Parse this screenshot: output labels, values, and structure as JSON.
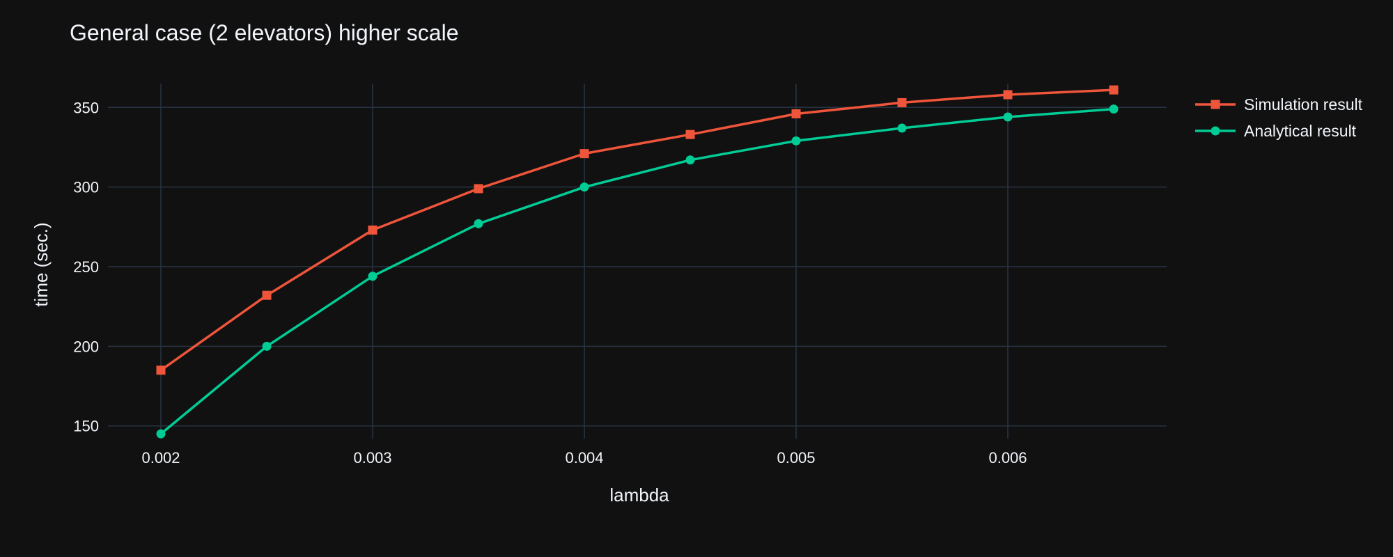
{
  "chart_data": {
    "type": "line",
    "title": "General case (2 elevators) higher scale",
    "xlabel": "lambda",
    "ylabel": "time (sec.)",
    "x": [
      0.002,
      0.0025,
      0.003,
      0.0035,
      0.004,
      0.0045,
      0.005,
      0.0055,
      0.006,
      0.0065
    ],
    "xlim": [
      0.00175,
      0.00675
    ],
    "ylim": [
      142,
      365
    ],
    "xticks": [
      0.002,
      0.003,
      0.004,
      0.005,
      0.006
    ],
    "xtick_labels": [
      "0.002",
      "0.003",
      "0.004",
      "0.005",
      "0.006"
    ],
    "yticks": [
      150,
      200,
      250,
      300,
      350
    ],
    "ytick_labels": [
      "150",
      "200",
      "250",
      "300",
      "350"
    ],
    "grid": true,
    "legend_position": "top-right",
    "series": [
      {
        "name": "Simulation result",
        "color": "#EF553B",
        "marker": "square",
        "values": [
          185,
          232,
          273,
          299,
          321,
          333,
          346,
          353,
          358,
          361
        ]
      },
      {
        "name": "Analytical result",
        "color": "#00CC96",
        "marker": "circle",
        "values": [
          145,
          200,
          244,
          277,
          300,
          317,
          329,
          337,
          344,
          349
        ]
      }
    ]
  },
  "colors": {
    "background": "#111111",
    "grid": "#283442",
    "text": "#f2f5fa"
  }
}
